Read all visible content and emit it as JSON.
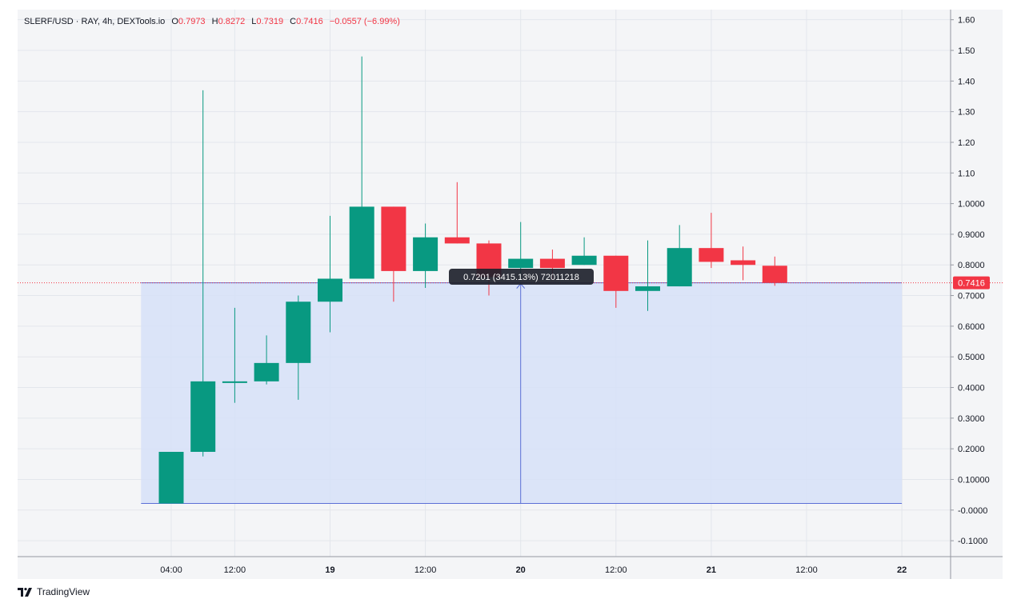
{
  "legend": {
    "symbol": "SLERF/USD · RAY, 4h, DEXTools.io",
    "o_label": "O",
    "o_value": "0.7973",
    "h_label": "H",
    "h_value": "0.8272",
    "l_label": "L",
    "l_value": "0.7319",
    "c_label": "C",
    "c_value": "0.7416",
    "change": "−0.0557 (−6.99%)"
  },
  "measure_tooltip": "0.7201 (3415.13%) 72011218",
  "last_price_label": "0.7416",
  "brand": {
    "name": "TradingView",
    "logo_icon": "tradingview-logo-icon"
  },
  "colors": {
    "up": "#089981",
    "down": "#f23645",
    "measure_fill": "#d6e0f8",
    "measure_line": "#5b6fd6",
    "price_line": "#f23645"
  },
  "chart_data": {
    "type": "candlestick",
    "y_ticks": [
      "1.60",
      "1.50",
      "1.40",
      "1.30",
      "1.20",
      "1.10",
      "1.0000",
      "0.9000",
      "0.8000",
      "0.7000",
      "0.6000",
      "0.5000",
      "0.4000",
      "0.3000",
      "0.2000",
      "0.10000",
      "-0.0000",
      "-0.1000"
    ],
    "y_tick_values": [
      1.6,
      1.5,
      1.4,
      1.3,
      1.2,
      1.1,
      1.0,
      0.9,
      0.8,
      0.7,
      0.6,
      0.5,
      0.4,
      0.3,
      0.2,
      0.1,
      0.0,
      -0.1
    ],
    "ylim": [
      -0.11,
      1.64
    ],
    "x_ticks": [
      "04:00",
      "12:00",
      "19",
      "12:00",
      "20",
      "12:00",
      "21",
      "12:00",
      "22"
    ],
    "x_tick_bars": [
      0,
      2,
      5,
      8,
      11,
      14,
      17,
      20,
      23
    ],
    "x_tick_bold": [
      false,
      false,
      true,
      false,
      true,
      false,
      true,
      false,
      true
    ],
    "candles": [
      {
        "o": 0.0215,
        "h": 0.19,
        "l": 0.0215,
        "c": 0.19
      },
      {
        "o": 0.19,
        "h": 1.37,
        "l": 0.175,
        "c": 0.42
      },
      {
        "o": 0.42,
        "h": 0.66,
        "l": 0.35,
        "c": 0.42
      },
      {
        "o": 0.42,
        "h": 0.57,
        "l": 0.41,
        "c": 0.48
      },
      {
        "o": 0.48,
        "h": 0.7,
        "l": 0.36,
        "c": 0.68
      },
      {
        "o": 0.68,
        "h": 0.96,
        "l": 0.58,
        "c": 0.755
      },
      {
        "o": 0.755,
        "h": 1.48,
        "l": 0.755,
        "c": 0.99
      },
      {
        "o": 0.99,
        "h": 0.99,
        "l": 0.68,
        "c": 0.78
      },
      {
        "o": 0.78,
        "h": 0.935,
        "l": 0.725,
        "c": 0.89
      },
      {
        "o": 0.89,
        "h": 1.07,
        "l": 0.87,
        "c": 0.87
      },
      {
        "o": 0.87,
        "h": 0.88,
        "l": 0.7,
        "c": 0.76
      },
      {
        "o": 0.79,
        "h": 0.94,
        "l": 0.75,
        "c": 0.82
      },
      {
        "o": 0.82,
        "h": 0.85,
        "l": 0.75,
        "c": 0.79
      },
      {
        "o": 0.8,
        "h": 0.89,
        "l": 0.8,
        "c": 0.83
      },
      {
        "o": 0.83,
        "h": 0.83,
        "l": 0.66,
        "c": 0.715
      },
      {
        "o": 0.715,
        "h": 0.88,
        "l": 0.65,
        "c": 0.73
      },
      {
        "o": 0.73,
        "h": 0.93,
        "l": 0.73,
        "c": 0.855
      },
      {
        "o": 0.855,
        "h": 0.97,
        "l": 0.79,
        "c": 0.81
      },
      {
        "o": 0.815,
        "h": 0.86,
        "l": 0.75,
        "c": 0.8
      },
      {
        "o": 0.7973,
        "h": 0.8272,
        "l": 0.7319,
        "c": 0.7416
      }
    ],
    "last_price": 0.7416,
    "measure": {
      "start_bar": -1,
      "end_bar": 23,
      "price_from": 0.0215,
      "price_to": 0.7416,
      "arrow_bar": 11
    },
    "grid": true
  }
}
